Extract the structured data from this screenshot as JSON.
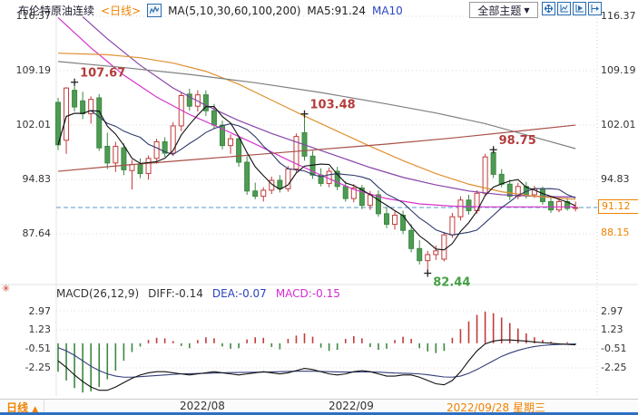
{
  "header": {
    "title": "布伦特原油连续",
    "period_tag": "<日线>",
    "ma_group_label": "MA(5,10,30,60,100,200)",
    "ma5_label": "MA5:91.24",
    "ma10_label": "MA10",
    "theme_button_label": "全部主题",
    "dropdown_arrow": "▼"
  },
  "icons": {
    "kline_icon": "k-line-chart",
    "pan_icon": "pan-move",
    "scale_icon": "axis-scale",
    "play_icon": "play-forward",
    "export_icon": "shift-right",
    "settings_icon": "✳",
    "period_arrow": "▲"
  },
  "price_axis": {
    "left": [
      "116.37",
      "109.19",
      "102.01",
      "94.83",
      "87.64"
    ],
    "right": [
      "116.37",
      "109.19",
      "102.01",
      "94.83"
    ],
    "current_price_label": "91.12",
    "secondary_price_label": "88.15"
  },
  "macd_header": {
    "label": "MACD(26,12,9)",
    "diff": "DIFF:-0.14",
    "dea": "DEA:-0.07",
    "macd": "MACD:-0.15"
  },
  "macd_axis": {
    "left": [
      "2.97",
      "1.23",
      "-0.51",
      "-2.25"
    ],
    "right": [
      "2.97",
      "1.23",
      "-0.51",
      "-2.25"
    ]
  },
  "bottom_bar": {
    "period_label": "日线",
    "period_arrow": "▲",
    "dates": [
      {
        "label": "2022/08"
      },
      {
        "label": "2022/09"
      },
      {
        "label": "2022/09/28 星期三"
      }
    ]
  },
  "chart_data": {
    "type": "candlestick+macd",
    "title": "布伦特原油连续 日线",
    "price_ticks": [
      116.37,
      109.19,
      102.01,
      94.83,
      87.64
    ],
    "macd_ticks": [
      2.97,
      1.23,
      -0.51,
      -2.25
    ],
    "current_price": 91.12,
    "secondary_price": 88.15,
    "colors": {
      "up": "#c23b3b",
      "down": "#4e9b53",
      "down_stroke": "#3d8843",
      "ma5": "#111111",
      "ma10": "#2f3a6e",
      "ma30": "#d633cc",
      "ma60": "#8844aa",
      "ma100": "#e09030",
      "ma200": "#a85048",
      "gray_line": "#808080",
      "grid": "#d9d9d9",
      "price_line": "#5599cc",
      "ann_high": "#b43c3c",
      "ann_low": "#44a044",
      "hist_pos": "#c23b3b",
      "hist_neg": "#3d8843",
      "diff_line": "#111111",
      "dea_line": "#333f7a"
    },
    "candles": [
      [
        105.0,
        105.6,
        98.7,
        99.4
      ],
      [
        100.0,
        107.0,
        98.2,
        106.9
      ],
      [
        106.6,
        107.67,
        103.8,
        104.4
      ],
      [
        105.2,
        106.4,
        102.8,
        103.5
      ],
      [
        103.5,
        105.8,
        102.2,
        105.4
      ],
      [
        105.6,
        106.1,
        98.6,
        99.0
      ],
      [
        99.2,
        101.0,
        96.2,
        97.0
      ],
      [
        97.0,
        99.8,
        95.8,
        99.2
      ],
      [
        99.0,
        99.6,
        95.4,
        96.1
      ],
      [
        96.0,
        97.4,
        93.5,
        96.8
      ],
      [
        96.8,
        97.6,
        95.0,
        95.6
      ],
      [
        95.6,
        98.0,
        94.8,
        97.6
      ],
      [
        97.6,
        100.2,
        96.9,
        99.8
      ],
      [
        99.8,
        100.4,
        97.8,
        98.3
      ],
      [
        98.3,
        102.4,
        97.9,
        101.9
      ],
      [
        101.9,
        106.4,
        101.2,
        105.9
      ],
      [
        106.1,
        106.8,
        103.9,
        104.5
      ],
      [
        104.5,
        106.6,
        103.8,
        106.0
      ],
      [
        106.0,
        106.6,
        103.2,
        103.9
      ],
      [
        103.9,
        104.8,
        101.5,
        102.0
      ],
      [
        102.0,
        102.6,
        98.8,
        99.3
      ],
      [
        99.3,
        100.8,
        98.2,
        100.2
      ],
      [
        100.2,
        100.6,
        96.5,
        97.1
      ],
      [
        97.1,
        97.9,
        92.8,
        93.3
      ],
      [
        93.3,
        94.4,
        92.2,
        92.6
      ],
      [
        92.6,
        93.8,
        91.9,
        93.4
      ],
      [
        93.4,
        95.2,
        92.9,
        94.7
      ],
      [
        94.7,
        95.4,
        93.1,
        93.6
      ],
      [
        93.6,
        96.6,
        93.2,
        96.2
      ],
      [
        96.2,
        100.9,
        95.8,
        100.5
      ],
      [
        101.0,
        103.48,
        97.3,
        97.9
      ],
      [
        97.9,
        98.6,
        94.9,
        95.4
      ],
      [
        95.4,
        96.3,
        93.9,
        94.3
      ],
      [
        94.3,
        96.4,
        93.8,
        95.9
      ],
      [
        95.9,
        96.5,
        93.4,
        93.9
      ],
      [
        93.9,
        94.6,
        91.9,
        92.3
      ],
      [
        92.3,
        94.2,
        91.8,
        93.7
      ],
      [
        93.7,
        94.1,
        90.9,
        91.4
      ],
      [
        91.4,
        93.3,
        90.8,
        92.8
      ],
      [
        92.8,
        93.4,
        89.9,
        90.3
      ],
      [
        90.3,
        91.2,
        88.4,
        88.9
      ],
      [
        88.9,
        90.6,
        88.2,
        90.1
      ],
      [
        90.1,
        90.7,
        87.6,
        88.1
      ],
      [
        88.1,
        88.9,
        85.2,
        85.7
      ],
      [
        85.7,
        86.8,
        83.6,
        84.1
      ],
      [
        84.1,
        85.4,
        82.44,
        84.9
      ],
      [
        84.9,
        86.1,
        84.2,
        85.4
      ],
      [
        84.3,
        87.9,
        84.0,
        87.5
      ],
      [
        87.5,
        90.4,
        87.1,
        89.9
      ],
      [
        89.9,
        92.6,
        89.4,
        92.1
      ],
      [
        92.1,
        92.8,
        90.2,
        90.7
      ],
      [
        90.7,
        93.4,
        90.3,
        93.0
      ],
      [
        93.0,
        98.2,
        92.6,
        97.8
      ],
      [
        98.4,
        98.75,
        95.0,
        95.5
      ],
      [
        95.5,
        96.2,
        93.8,
        94.2
      ],
      [
        94.2,
        94.8,
        92.1,
        92.6
      ],
      [
        92.6,
        94.4,
        92.2,
        93.9
      ],
      [
        93.9,
        94.5,
        92.3,
        92.8
      ],
      [
        92.8,
        94.0,
        92.4,
        93.6
      ],
      [
        93.6,
        93.9,
        91.5,
        91.9
      ],
      [
        91.9,
        92.6,
        90.4,
        90.8
      ],
      [
        90.8,
        92.3,
        90.5,
        91.9
      ],
      [
        91.9,
        92.4,
        90.7,
        91.0
      ],
      [
        91.0,
        91.9,
        90.6,
        91.12
      ]
    ],
    "ma_lines": [
      {
        "name": "ma30",
        "color_key": "ma30",
        "points": [
          [
            0,
            116.2
          ],
          [
            4,
            112.2
          ],
          [
            8,
            108.6
          ],
          [
            12,
            105.7
          ],
          [
            16,
            103.4
          ],
          [
            20,
            101.5
          ],
          [
            24,
            99.5
          ],
          [
            28,
            97.4
          ],
          [
            32,
            95.4
          ],
          [
            36,
            93.5
          ],
          [
            40,
            92.3
          ],
          [
            44,
            91.6
          ],
          [
            48,
            91.3
          ],
          [
            52,
            91.2
          ],
          [
            56,
            91.2
          ],
          [
            60,
            91.2
          ],
          [
            63,
            91.2
          ]
        ]
      },
      {
        "name": "ma60",
        "color_key": "ma60",
        "points": [
          [
            3,
            116.3
          ],
          [
            6,
            113.4
          ],
          [
            10,
            109.9
          ],
          [
            14,
            106.9
          ],
          [
            18,
            104.6
          ],
          [
            22,
            102.6
          ],
          [
            26,
            100.9
          ],
          [
            30,
            99.4
          ],
          [
            34,
            97.9
          ],
          [
            38,
            96.4
          ],
          [
            42,
            95.1
          ],
          [
            46,
            94.1
          ],
          [
            50,
            93.3
          ],
          [
            54,
            92.8
          ],
          [
            58,
            92.6
          ],
          [
            63,
            92.5
          ]
        ]
      },
      {
        "name": "ma100",
        "color_key": "ma100",
        "points": [
          [
            0,
            111.5
          ],
          [
            6,
            111.3
          ],
          [
            10,
            110.9
          ],
          [
            14,
            110.2
          ],
          [
            18,
            109.1
          ],
          [
            22,
            107.4
          ],
          [
            26,
            105.3
          ],
          [
            30,
            103.2
          ],
          [
            34,
            101.2
          ],
          [
            38,
            99.2
          ],
          [
            42,
            97.3
          ],
          [
            46,
            95.6
          ],
          [
            50,
            94.2
          ],
          [
            54,
            93.2
          ],
          [
            58,
            92.6
          ],
          [
            63,
            92.2
          ]
        ]
      },
      {
        "name": "gray-line",
        "color_key": "gray_line",
        "points": [
          [
            0,
            110.4
          ],
          [
            8,
            109.6
          ],
          [
            16,
            108.7
          ],
          [
            24,
            107.6
          ],
          [
            32,
            106.3
          ],
          [
            40,
            104.8
          ],
          [
            46,
            103.6
          ],
          [
            52,
            102.2
          ],
          [
            58,
            100.4
          ],
          [
            63,
            98.9
          ]
        ]
      },
      {
        "name": "ma200",
        "color_key": "ma200",
        "points": [
          [
            0,
            95.9
          ],
          [
            8,
            96.7
          ],
          [
            16,
            97.4
          ],
          [
            24,
            98.1
          ],
          [
            32,
            98.8
          ],
          [
            40,
            99.5
          ],
          [
            48,
            100.3
          ],
          [
            56,
            101.2
          ],
          [
            63,
            102.0
          ]
        ]
      }
    ],
    "annotations": [
      {
        "text": "107.67",
        "value": 107.67,
        "index": 2,
        "placement": "above",
        "color_key": "ann_high"
      },
      {
        "text": "103.48",
        "value": 103.48,
        "index": 30,
        "placement": "above",
        "color_key": "ann_high"
      },
      {
        "text": "98.75",
        "value": 98.75,
        "index": 53,
        "placement": "above",
        "color_key": "ann_high"
      },
      {
        "text": "82.44",
        "value": 82.44,
        "index": 45,
        "placement": "below",
        "color_key": "ann_low"
      }
    ],
    "macd": {
      "hist": [
        -2.6,
        -3.4,
        -4.1,
        -4.5,
        -4.4,
        -4.0,
        -3.3,
        -2.5,
        -1.6,
        -0.8,
        -0.3,
        0.3,
        0.5,
        0.45,
        0.2,
        -0.25,
        -0.45,
        0.3,
        0.55,
        0.45,
        -0.3,
        -0.5,
        -0.45,
        0.35,
        0.55,
        0.5,
        -0.35,
        -0.55,
        0.4,
        0.7,
        0.9,
        0.6,
        -0.4,
        -0.7,
        -0.6,
        0.4,
        0.65,
        0.45,
        -0.35,
        -0.6,
        -0.5,
        0.3,
        0.6,
        0.4,
        -0.45,
        -0.75,
        -0.9,
        -0.7,
        0.5,
        1.3,
        2.0,
        2.6,
        2.9,
        2.75,
        2.35,
        1.85,
        1.35,
        0.9,
        0.55,
        0.3,
        0.15,
        -0.1,
        0.1,
        -0.12
      ],
      "diff": [
        -1.6,
        -2.2,
        -2.9,
        -3.5,
        -4.0,
        -4.3,
        -4.3,
        -4.0,
        -3.6,
        -3.2,
        -2.9,
        -2.7,
        -2.6,
        -2.6,
        -2.7,
        -2.8,
        -2.9,
        -2.8,
        -2.7,
        -2.6,
        -2.7,
        -2.8,
        -2.9,
        -2.8,
        -2.7,
        -2.6,
        -2.7,
        -2.8,
        -2.7,
        -2.5,
        -2.3,
        -2.4,
        -2.6,
        -2.8,
        -2.9,
        -2.8,
        -2.6,
        -2.5,
        -2.6,
        -2.8,
        -3.0,
        -3.0,
        -2.9,
        -2.9,
        -3.1,
        -3.4,
        -3.7,
        -3.8,
        -3.4,
        -2.6,
        -1.6,
        -0.7,
        -0.05,
        0.2,
        0.3,
        0.3,
        0.25,
        0.2,
        0.12,
        0.06,
        0.0,
        -0.06,
        -0.1,
        -0.14
      ],
      "dea": [
        -0.4,
        -0.7,
        -1.1,
        -1.6,
        -2.1,
        -2.5,
        -2.8,
        -3.0,
        -3.1,
        -3.1,
        -3.05,
        -3.0,
        -2.95,
        -2.9,
        -2.85,
        -2.8,
        -2.78,
        -2.76,
        -2.74,
        -2.72,
        -2.7,
        -2.68,
        -2.67,
        -2.66,
        -2.65,
        -2.64,
        -2.62,
        -2.6,
        -2.58,
        -2.56,
        -2.55,
        -2.56,
        -2.58,
        -2.6,
        -2.62,
        -2.63,
        -2.63,
        -2.62,
        -2.62,
        -2.64,
        -2.68,
        -2.72,
        -2.74,
        -2.76,
        -2.8,
        -2.88,
        -2.98,
        -3.08,
        -3.1,
        -3.0,
        -2.75,
        -2.4,
        -2.0,
        -1.6,
        -1.2,
        -0.9,
        -0.65,
        -0.45,
        -0.3,
        -0.2,
        -0.14,
        -0.1,
        -0.08,
        -0.07
      ]
    },
    "x_axis_dates": [
      "2022/08",
      "2022/09",
      "2022/09/28 星期三"
    ]
  }
}
